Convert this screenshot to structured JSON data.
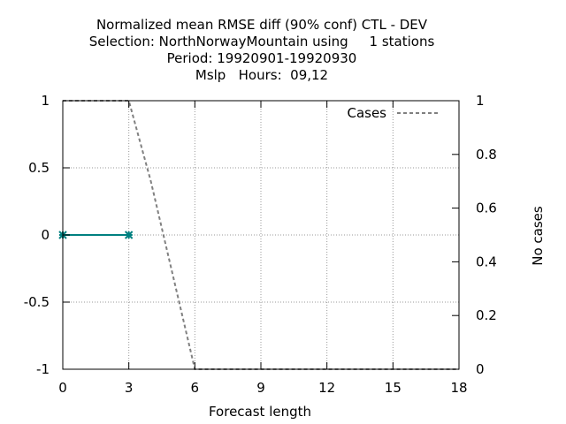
{
  "chart_data": {
    "type": "line",
    "title_lines": [
      "Normalized mean RMSE diff (90% conf) CTL - DEV",
      "Selection: NorthNorwayMountain using     1 stations",
      "Period: 19920901-19920930",
      "Mslp   Hours:  09,12"
    ],
    "xlabel": "Forecast length",
    "ylabel_right": "No cases",
    "x_ticks": [
      0,
      3,
      6,
      9,
      12,
      15,
      18
    ],
    "y_ticks_left": [
      {
        "value": 1,
        "label": "1"
      },
      {
        "value": 0.5,
        "label": "0.5"
      },
      {
        "value": 0,
        "label": "0"
      },
      {
        "value": -0.5,
        "label": "-0.5"
      },
      {
        "value": -1,
        "label": "-1"
      }
    ],
    "y_ticks_right": [
      {
        "value": 1,
        "label": "1"
      },
      {
        "value": 0.8,
        "label": "0.8"
      },
      {
        "value": 0.6,
        "label": "0.6"
      },
      {
        "value": 0.4,
        "label": "0.4"
      },
      {
        "value": 0.2,
        "label": "0.2"
      },
      {
        "value": 0,
        "label": "0"
      }
    ],
    "xlim": [
      0,
      18
    ],
    "ylim_left": [
      -1,
      1
    ],
    "ylim_right": [
      0,
      1
    ],
    "grid": true,
    "legend_position": "top-right",
    "series": [
      {
        "axis": "left",
        "color": "#008080",
        "style": "solid",
        "markers": true,
        "x": [
          0,
          3
        ],
        "y": [
          0,
          0
        ]
      },
      {
        "name": "Cases",
        "axis": "right",
        "color": "#808080",
        "style": "dashed",
        "markers": false,
        "x": [
          0,
          3,
          4,
          6,
          18
        ],
        "y": [
          1,
          1,
          0.7,
          0,
          0
        ]
      }
    ]
  }
}
